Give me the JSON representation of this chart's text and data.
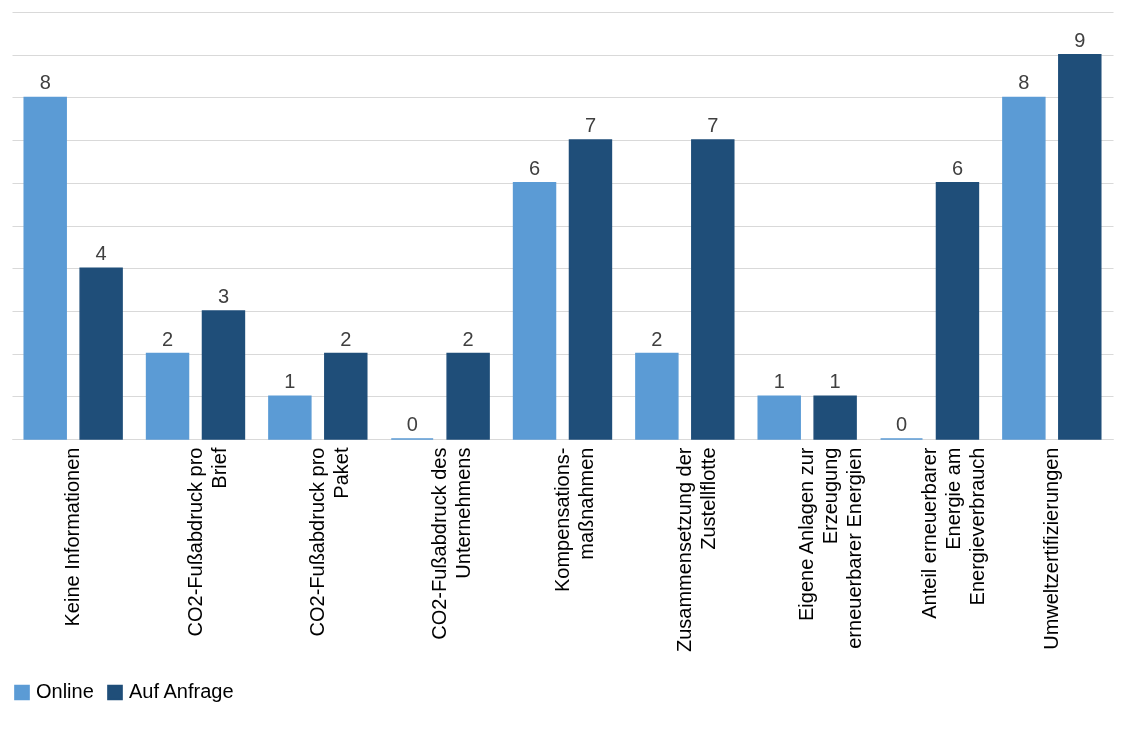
{
  "chart_data": {
    "type": "bar",
    "categories": [
      "Keine Informationen",
      "CO2-Fußabdruck pro Brief",
      "CO2-Fußabdruck pro Paket",
      "CO2-Fußabdruck des Unternehmens",
      "Kompensations-maßnahmen",
      "Zusammensetzung der Zustellflotte",
      "Eigene Anlagen zur Erzeugung erneuerbarer Energien",
      "Anteil erneuerbarer Energie am Energieverbrauch",
      "Umweltzertifizierungen"
    ],
    "series": [
      {
        "name": "Online",
        "color": "#5b9bd5",
        "values": [
          8,
          2,
          1,
          0,
          6,
          2,
          1,
          0,
          8
        ]
      },
      {
        "name": "Auf Anfrage",
        "color": "#1f4e79",
        "values": [
          4,
          3,
          2,
          2,
          7,
          7,
          1,
          6,
          9
        ]
      }
    ],
    "ylim": [
      0,
      10
    ],
    "yticks": [
      {
        "value": 0,
        "label": null
      },
      {
        "value": 1,
        "label": null
      },
      {
        "value": 2,
        "label": null
      },
      {
        "value": 3,
        "label": null
      },
      {
        "value": 4,
        "label": null
      },
      {
        "value": 5,
        "label": null
      },
      {
        "value": 6,
        "label": null
      },
      {
        "value": 7,
        "label": null
      },
      {
        "value": 8,
        "label": null
      },
      {
        "value": 9,
        "label": null
      },
      {
        "value": 10,
        "label": null
      }
    ],
    "tick_labels": "x",
    "grid": "y",
    "legend": "bottom",
    "data_labels": true
  }
}
